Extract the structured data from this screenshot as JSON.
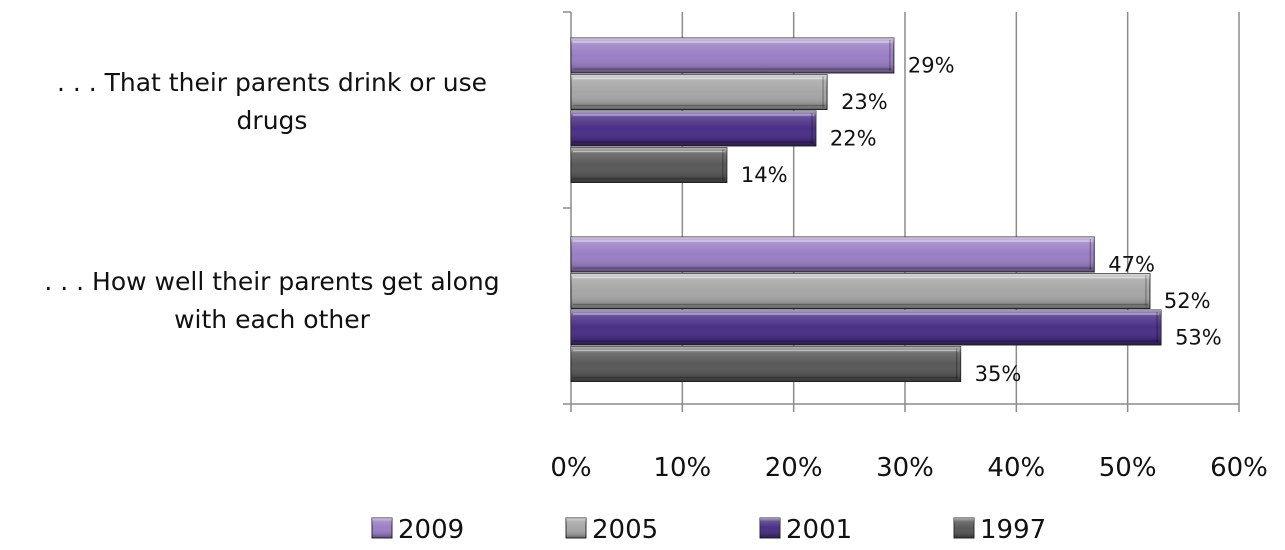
{
  "chart_data": {
    "type": "bar",
    "orientation": "horizontal",
    "categories": [
      ". . . That their parents drink or use drugs",
      ". . . How well their parents get along with each other"
    ],
    "category_lines": [
      [
        ". . . That their parents drink or use",
        "drugs"
      ],
      [
        ". . . How well their parents get along",
        "with each other"
      ]
    ],
    "series": [
      {
        "name": "2009",
        "values": [
          29,
          47
        ],
        "labels": [
          "29%",
          "47%"
        ],
        "color": "#9a7ec4"
      },
      {
        "name": "2005",
        "values": [
          23,
          52
        ],
        "labels": [
          "23%",
          "52%"
        ],
        "color": "#a6a6a6"
      },
      {
        "name": "2001",
        "values": [
          22,
          53
        ],
        "labels": [
          "22%",
          "53%"
        ],
        "color": "#4a2f86"
      },
      {
        "name": "1997",
        "values": [
          14,
          35
        ],
        "labels": [
          "14%",
          "35%"
        ],
        "color": "#595959"
      }
    ],
    "x_ticks": [
      "0%",
      "10%",
      "20%",
      "30%",
      "40%",
      "50%",
      "60%"
    ],
    "xlim": [
      0,
      60
    ],
    "grid": true,
    "legend_position": "bottom"
  }
}
